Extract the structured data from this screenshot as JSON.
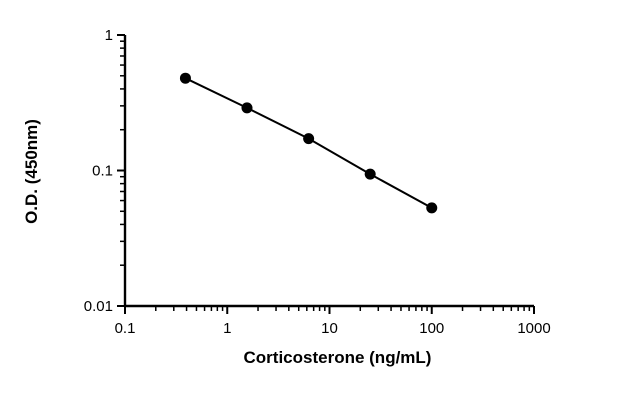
{
  "chart_data": {
    "type": "scatter",
    "xlabel": "Corticosterone (ng/mL)",
    "ylabel": "O.D. (450nm)",
    "xscale": "log",
    "yscale": "log",
    "xlim": [
      0.1,
      1000
    ],
    "ylim": [
      0.01,
      1
    ],
    "x_tick_labels": [
      "0.1",
      "1",
      "10",
      "100",
      "1000"
    ],
    "y_tick_labels": [
      "0.01",
      "0.1",
      "1"
    ],
    "grid": false,
    "legend": "none",
    "series": [
      {
        "x": [
          0.39,
          1.56,
          6.25,
          25,
          100
        ],
        "y": [
          0.48,
          0.29,
          0.172,
          0.094,
          0.053
        ],
        "color": "#000000",
        "marker": "circle",
        "line": true
      }
    ]
  }
}
